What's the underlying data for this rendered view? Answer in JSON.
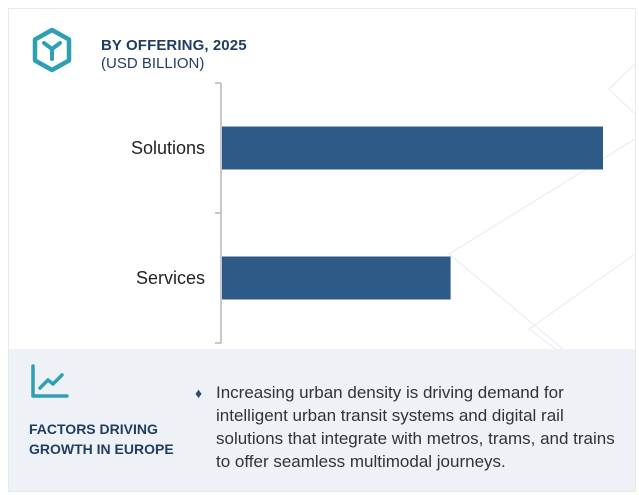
{
  "header": {
    "title": "BY OFFERING, 2025",
    "subtitle": "(USD BILLION)",
    "logo_icon": "hexagon-y-icon"
  },
  "chart_data": {
    "type": "bar",
    "orientation": "horizontal",
    "categories": [
      "Solutions",
      "Services"
    ],
    "values": [
      100,
      60
    ],
    "xlim": [
      0,
      100
    ],
    "bar_color": "#2d5a87",
    "axis_labels_shown": false,
    "grid": false
  },
  "factors": {
    "icon": "trend-line-icon",
    "title": "FACTORS DRIVING GROWTH IN EUROPE",
    "bullet_icon": "diamond-icon",
    "bullet_glyph": "♦",
    "text": "Increasing urban density is driving demand for intelligent urban transit systems and digital rail solutions that integrate with metros, trams, and trains to offer seamless multimodal journeys."
  },
  "colors": {
    "accent": "#2d5a87",
    "icon_teal": "#2fa0b4",
    "heading": "#1f3d5f",
    "panel_bg": "#eef1f6"
  }
}
